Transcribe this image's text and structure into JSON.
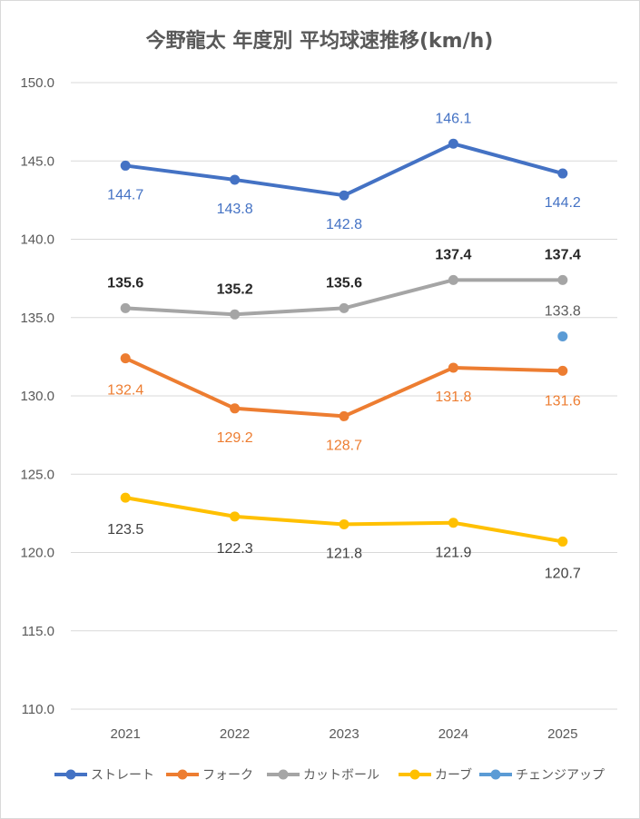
{
  "chart_data": {
    "type": "line",
    "title": "今野龍太 年度別 平均球速推移(km/h)",
    "categories": [
      "2021",
      "2022",
      "2023",
      "2024",
      "2025"
    ],
    "y_ticks": [
      "110.0",
      "115.0",
      "120.0",
      "125.0",
      "130.0",
      "135.0",
      "140.0",
      "145.0",
      "150.0"
    ],
    "ylim": [
      110,
      150
    ],
    "grid": true,
    "legend_position": "bottom",
    "series": [
      {
        "name": "ストレート",
        "color": "#4472C4",
        "values": [
          144.7,
          143.8,
          142.8,
          146.1,
          144.2
        ],
        "labels": [
          "144.7",
          "143.8",
          "142.8",
          "146.1",
          "144.2"
        ],
        "label_color": "#4472C4"
      },
      {
        "name": "フォーク",
        "color": "#ED7D31",
        "values": [
          132.4,
          129.2,
          128.7,
          131.8,
          131.6
        ],
        "labels": [
          "132.4",
          "129.2",
          "128.7",
          "131.8",
          "131.6"
        ],
        "label_color": "#ED7D31"
      },
      {
        "name": "カットボール",
        "color": "#A5A5A5",
        "values": [
          135.6,
          135.2,
          135.6,
          137.4,
          137.4
        ],
        "labels": [
          "135.6",
          "135.2",
          "135.6",
          "137.4",
          "137.4"
        ],
        "label_color": "#262626"
      },
      {
        "name": "カーブ",
        "color": "#FFC000",
        "values": [
          123.5,
          122.3,
          121.8,
          121.9,
          120.7
        ],
        "labels": [
          "123.5",
          "122.3",
          "121.8",
          "121.9",
          "120.7"
        ],
        "label_color": "#404040"
      },
      {
        "name": "チェンジアップ",
        "color": "#5B9BD5",
        "values": [
          null,
          null,
          null,
          null,
          133.8
        ],
        "labels": [
          null,
          null,
          null,
          null,
          "133.8"
        ],
        "label_color": "#595959"
      }
    ]
  }
}
